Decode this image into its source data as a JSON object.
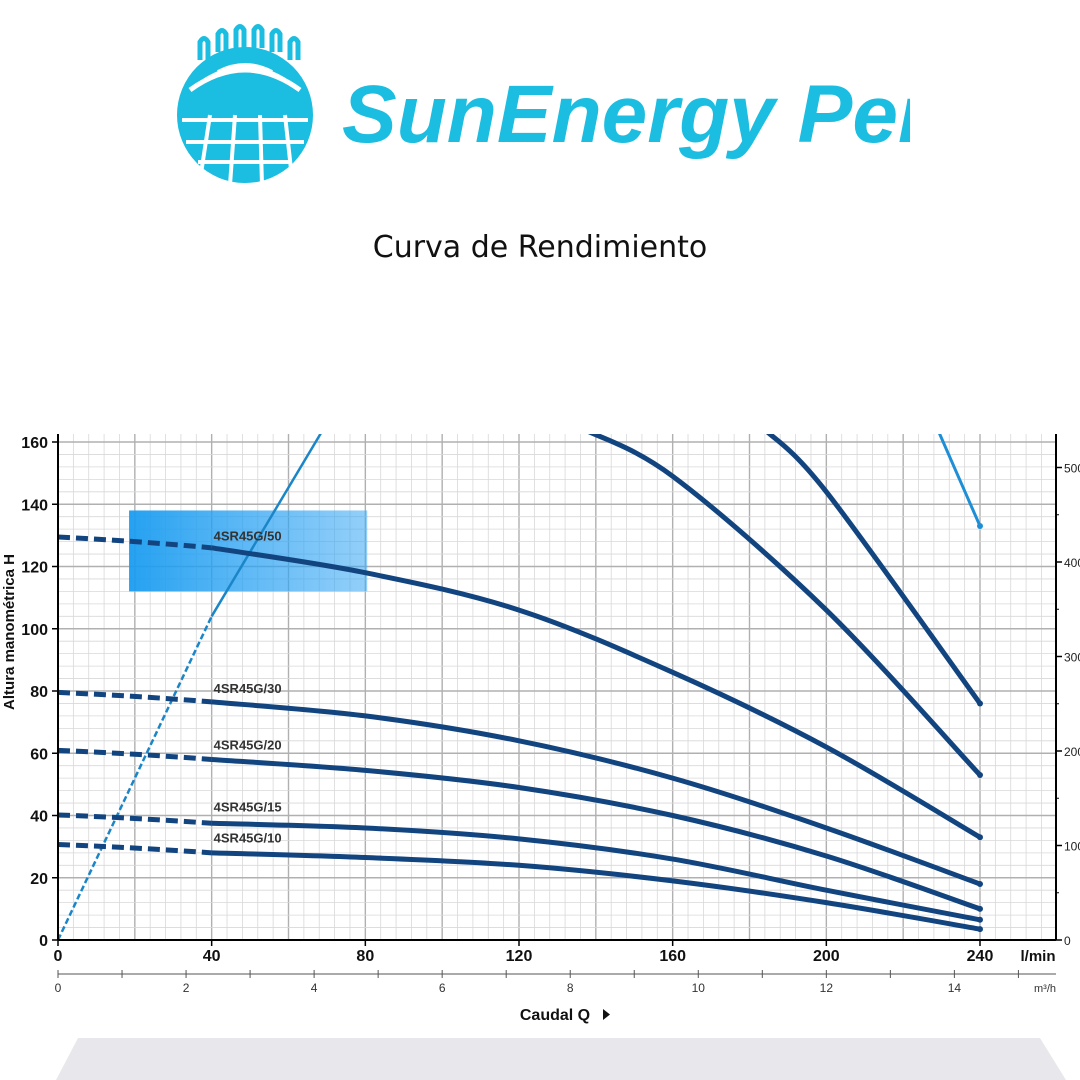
{
  "brand": {
    "name": "SunEnergy Perú",
    "color": "#1bbde0"
  },
  "page": {
    "subtitle": "Curva de  Rendimiento"
  },
  "chart_data": {
    "type": "line",
    "title": "",
    "ylabel": "Altura manométrica H",
    "xlabel": "Caudal Q",
    "x_unit": "l/min",
    "x2_unit": "m³/h",
    "xlim": [
      0,
      260
    ],
    "ylim": [
      0,
      162
    ],
    "x_ticks": [
      0,
      40,
      80,
      120,
      160,
      200,
      240
    ],
    "y_ticks": [
      0,
      20,
      40,
      60,
      80,
      100,
      120,
      140,
      160
    ],
    "x2_ticks": [
      0,
      2,
      4,
      6,
      8,
      10,
      12,
      14
    ],
    "right_ticks": [
      "0",
      "100",
      "200",
      "300",
      "400",
      "500"
    ],
    "grid": true,
    "series": [
      {
        "name": "4SR45G/10",
        "dashed_x": [
          0,
          40
        ],
        "x": [
          40,
          80,
          120,
          160,
          200,
          240
        ],
        "values": [
          28,
          26.5,
          24,
          19,
          12,
          3.5
        ],
        "label_pos": [
          40,
          30
        ]
      },
      {
        "name": "4SR45G/15",
        "dashed_x": [
          0,
          40
        ],
        "x": [
          40,
          80,
          120,
          160,
          200,
          240
        ],
        "values": [
          37.5,
          36,
          32.5,
          26,
          16,
          6.5
        ],
        "label_pos": [
          40,
          40
        ]
      },
      {
        "name": "4SR45G/20",
        "dashed_x": [
          0,
          40
        ],
        "x": [
          40,
          80,
          120,
          160,
          200,
          240
        ],
        "values": [
          58,
          54.5,
          49,
          40,
          27,
          10
        ],
        "label_pos": [
          40,
          60
        ]
      },
      {
        "name": "4SR45G/30",
        "dashed_x": [
          0,
          40
        ],
        "x": [
          40,
          80,
          120,
          160,
          200,
          240
        ],
        "values": [
          76.5,
          72,
          64,
          52,
          36,
          18
        ],
        "label_pos": [
          40,
          78
        ]
      },
      {
        "name": "4SR45G/50",
        "dashed_x": [
          0,
          40
        ],
        "x": [
          40,
          80,
          120,
          160,
          200,
          240
        ],
        "values": [
          126,
          118,
          106,
          86,
          62,
          33
        ],
        "label_pos": [
          40,
          127
        ]
      },
      {
        "name": "",
        "x": [
          137,
          160,
          200,
          240
        ],
        "values": [
          164,
          149,
          106,
          53
        ]
      },
      {
        "name": "",
        "x": [
          184,
          200,
          240
        ],
        "values": [
          164,
          144,
          76
        ]
      },
      {
        "name": "",
        "x": [
          229,
          240
        ],
        "values": [
          164,
          133
        ]
      }
    ],
    "efficiency_line": {
      "x": [
        0,
        40,
        69
      ],
      "values": [
        0,
        104,
        164
      ]
    },
    "highlight": {
      "x": [
        18.5,
        80.5
      ],
      "y": [
        112,
        138
      ]
    }
  }
}
